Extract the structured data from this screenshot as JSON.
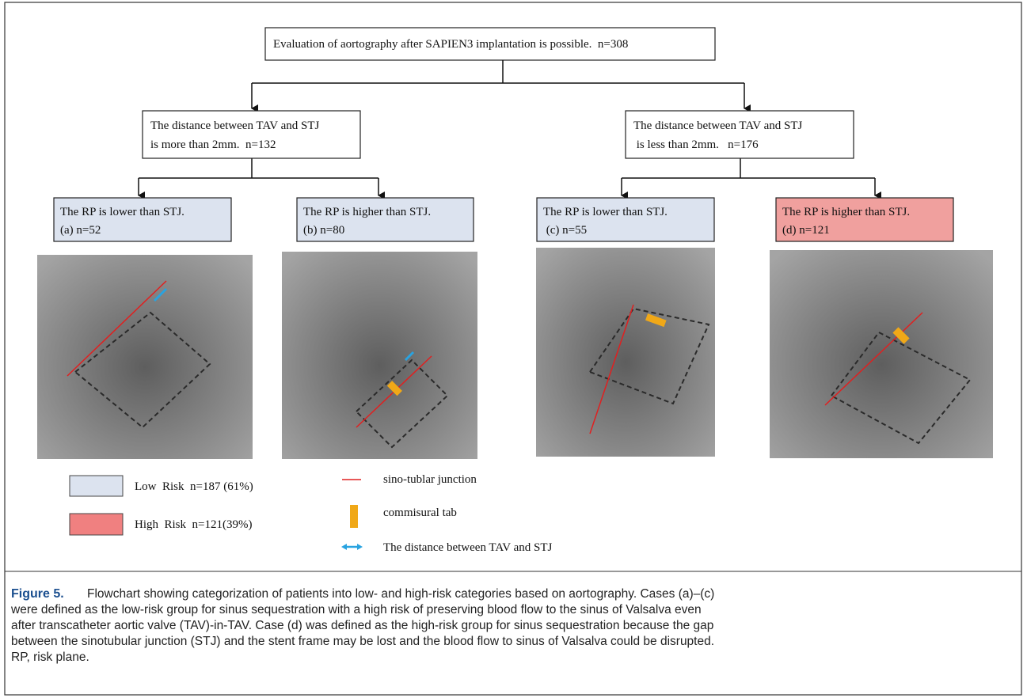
{
  "root": {
    "lines": [
      "Evaluation of aortography after SAPIEN3 implantation is possible.  n=308"
    ]
  },
  "level1": [
    {
      "lines": [
        "The distance between TAV and STJ",
        "is more than 2mm.  n=132"
      ]
    },
    {
      "lines": [
        "The distance between TAV and STJ",
        " is less than 2mm.   n=176"
      ]
    }
  ],
  "level2": [
    {
      "lines": [
        "The RP is lower than STJ.",
        "(a) n=52"
      ]
    },
    {
      "lines": [
        "The RP is higher than STJ.",
        "(b) n=80"
      ]
    },
    {
      "lines": [
        "The RP is lower than STJ.",
        " (c) n=55"
      ]
    },
    {
      "lines": [
        "The RP is higher than STJ.",
        "(d) n=121"
      ]
    }
  ],
  "legend": {
    "risk": [
      {
        "label": "Low  Risk  n=187 (61%)"
      },
      {
        "label": "High  Risk  n=121(39%)"
      }
    ],
    "symbols": [
      {
        "label": "sino-tublar junction"
      },
      {
        "label": "commisural tab"
      },
      {
        "label": "The distance between TAV and STJ"
      }
    ]
  },
  "caption": {
    "label": "Figure 5.",
    "lines": [
      "Flowchart showing categorization of patients into low- and high-risk categories based on aortography. Cases (a)–(c)",
      "were defined as the low-risk group for sinus sequestration with a high risk of preserving blood flow to the sinus of Valsalva even",
      "after transcatheter aortic valve (TAV)-in-TAV. Case (d) was defined as the high-risk group for sinus sequestration because the gap",
      "between the sinotubular junction (STJ) and the stent frame may be lost and the blood flow to sinus of Valsalva could be disrupted.",
      "RP, risk plane."
    ]
  }
}
